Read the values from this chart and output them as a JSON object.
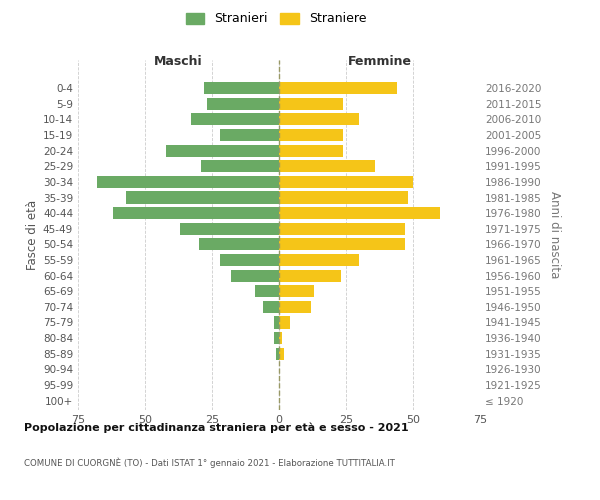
{
  "age_groups": [
    "100+",
    "95-99",
    "90-94",
    "85-89",
    "80-84",
    "75-79",
    "70-74",
    "65-69",
    "60-64",
    "55-59",
    "50-54",
    "45-49",
    "40-44",
    "35-39",
    "30-34",
    "25-29",
    "20-24",
    "15-19",
    "10-14",
    "5-9",
    "0-4"
  ],
  "birth_years": [
    "≤ 1920",
    "1921-1925",
    "1926-1930",
    "1931-1935",
    "1936-1940",
    "1941-1945",
    "1946-1950",
    "1951-1955",
    "1956-1960",
    "1961-1965",
    "1966-1970",
    "1971-1975",
    "1976-1980",
    "1981-1985",
    "1986-1990",
    "1991-1995",
    "1996-2000",
    "2001-2005",
    "2006-2010",
    "2011-2015",
    "2016-2020"
  ],
  "males": [
    0,
    0,
    0,
    1,
    2,
    2,
    6,
    9,
    18,
    22,
    30,
    37,
    62,
    57,
    68,
    29,
    42,
    22,
    33,
    27,
    28
  ],
  "females": [
    0,
    0,
    0,
    2,
    1,
    4,
    12,
    13,
    23,
    30,
    47,
    47,
    60,
    48,
    50,
    36,
    24,
    24,
    30,
    24,
    44
  ],
  "male_color": "#6aaa64",
  "female_color": "#f5c518",
  "background_color": "#ffffff",
  "grid_color": "#cccccc",
  "title": "Popolazione per cittadinanza straniera per età e sesso - 2021",
  "subtitle": "COMUNE DI CUORGNÈ (TO) - Dati ISTAT 1° gennaio 2021 - Elaborazione TUTTITALIA.IT",
  "xlabel_left": "Maschi",
  "xlabel_right": "Femmine",
  "ylabel_left": "Fasce di età",
  "ylabel_right": "Anni di nascita",
  "legend_male": "Stranieri",
  "legend_female": "Straniere",
  "xlim": 75,
  "figsize": [
    6.0,
    5.0
  ],
  "dpi": 100
}
